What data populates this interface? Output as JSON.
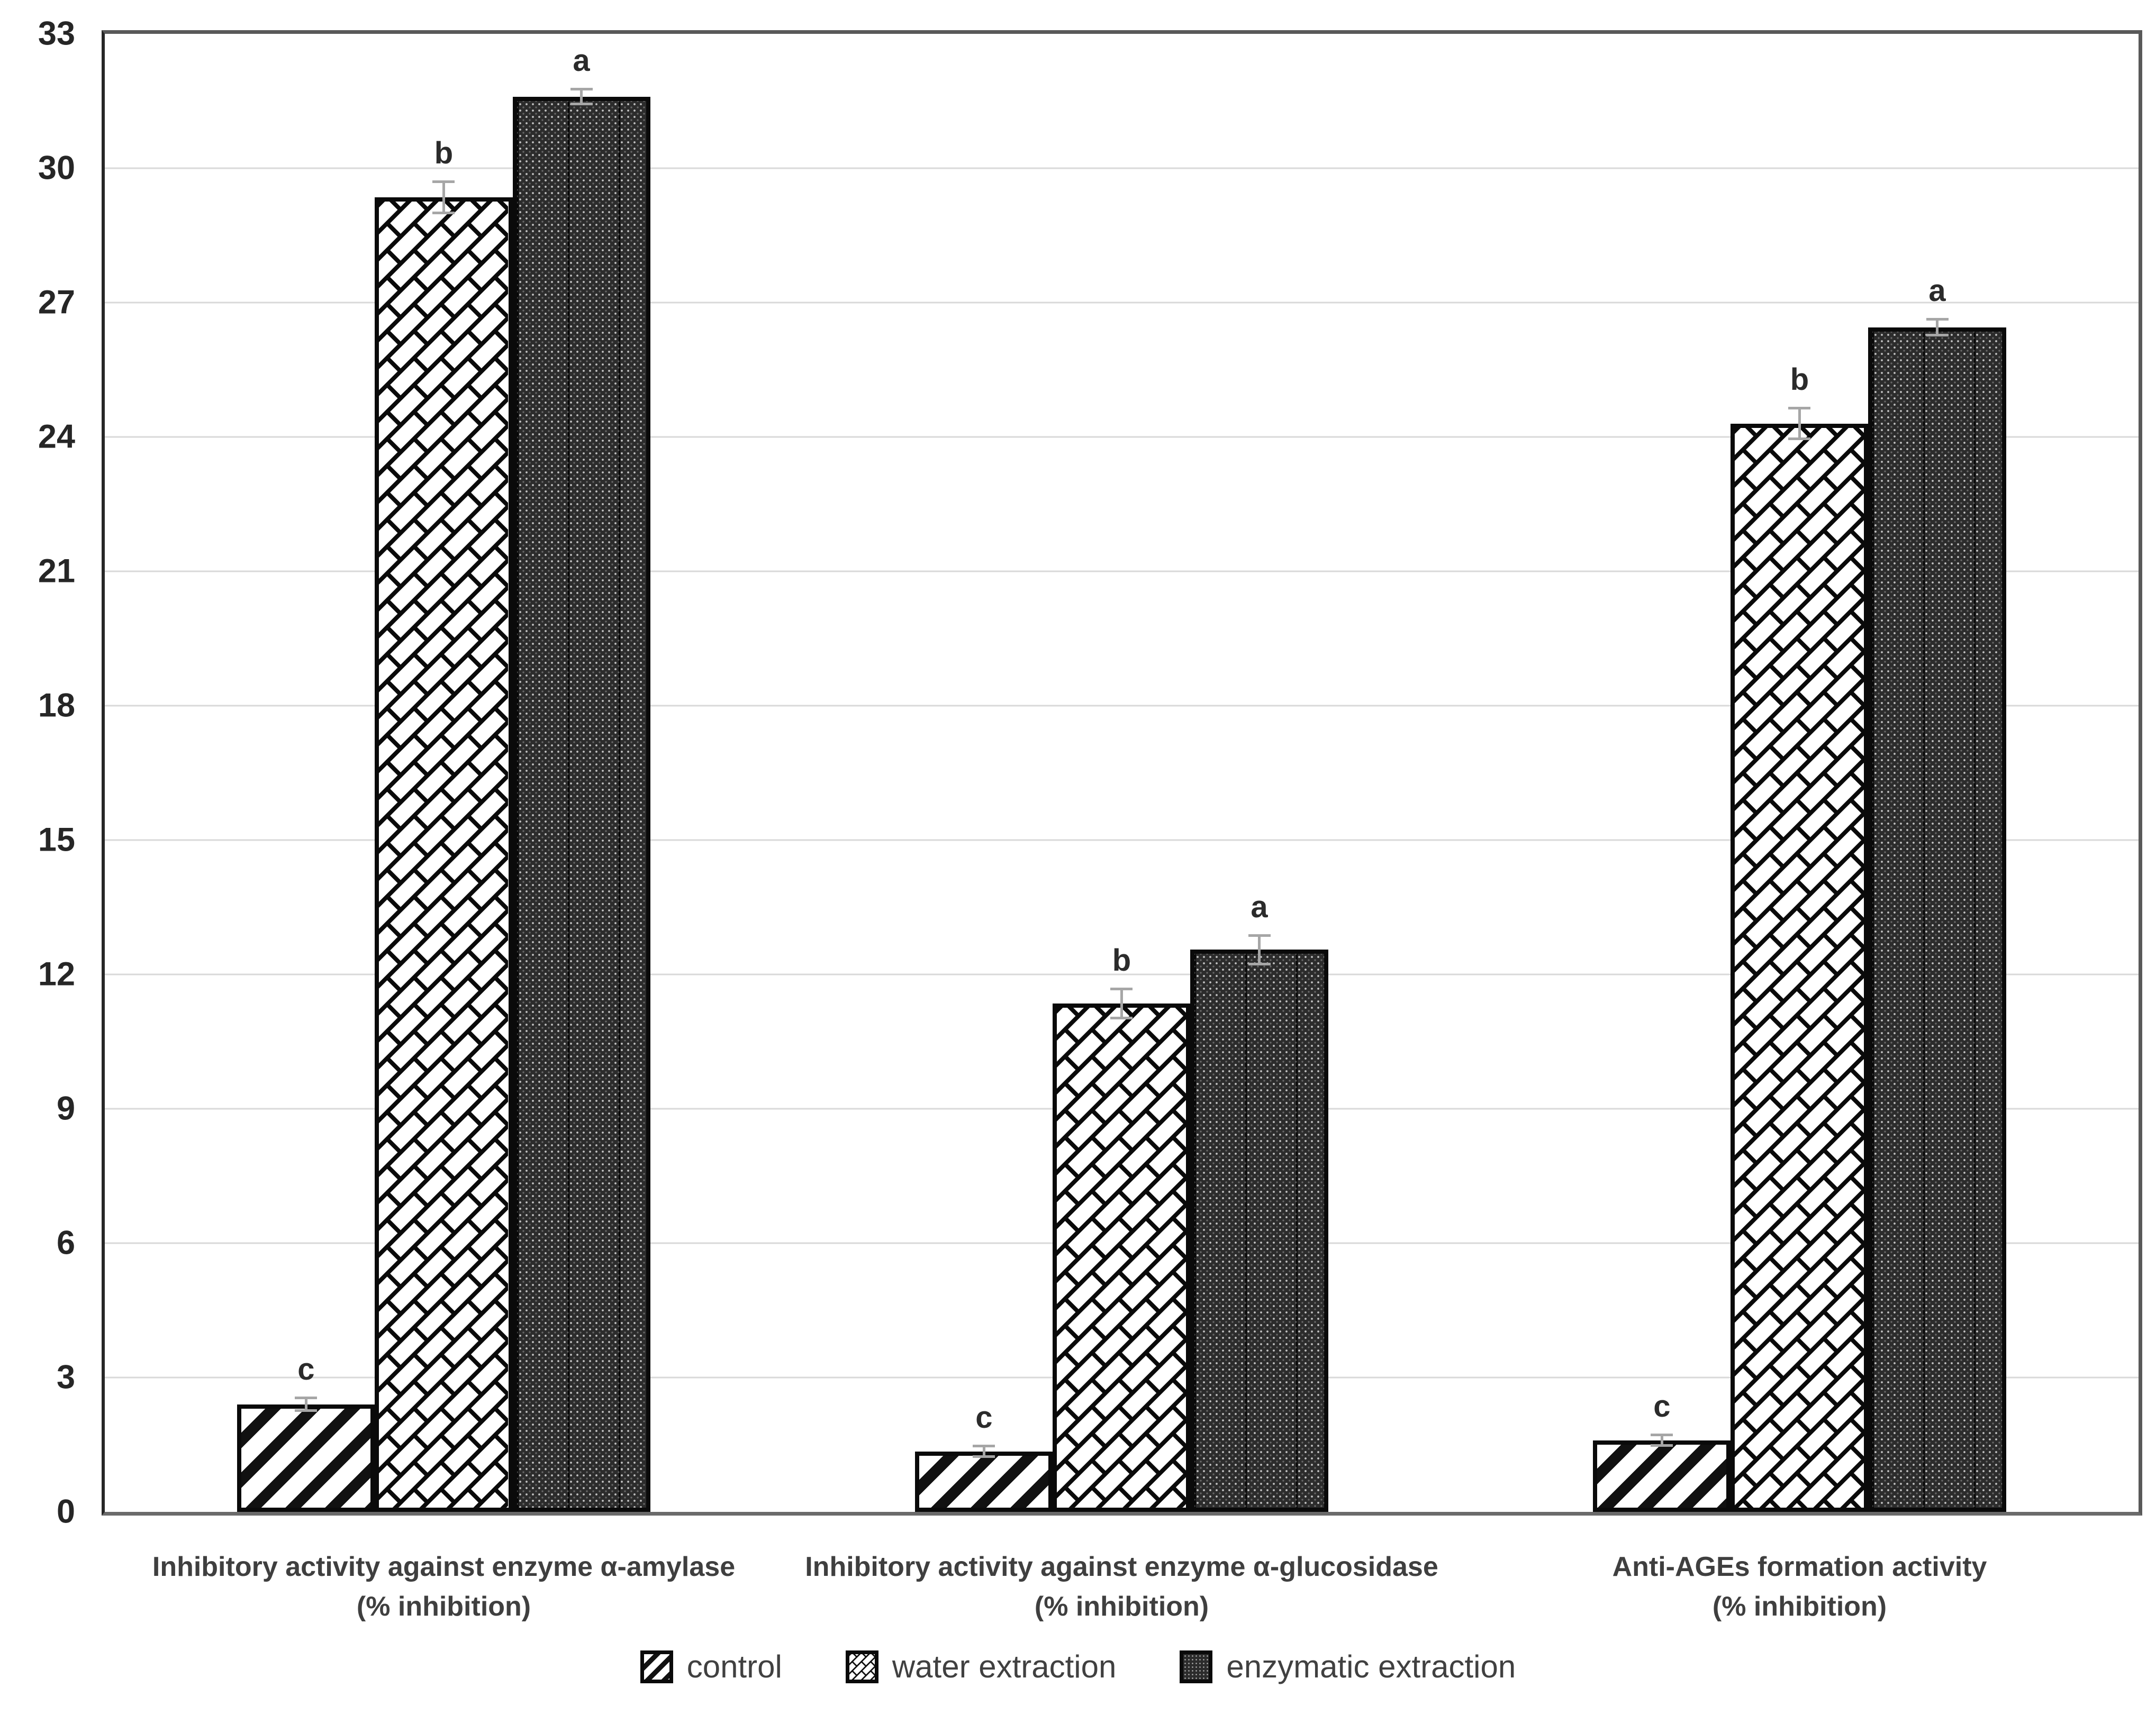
{
  "chart_data": {
    "type": "bar",
    "title": "",
    "xlabel": "",
    "ylabel": "",
    "ylim": [
      0,
      33
    ],
    "yticks": [
      0,
      3,
      6,
      9,
      12,
      15,
      18,
      21,
      24,
      27,
      30,
      33
    ],
    "grid": "horizontal",
    "legend_position": "bottom",
    "categories": [
      {
        "line1": "Inhibitory activity against enzyme α-amylase",
        "line2": "(% inhibition)"
      },
      {
        "line1": "Inhibitory activity against enzyme α-glucosidase",
        "line2": "(% inhibition)"
      },
      {
        "line1": "Anti-AGEs formation activity",
        "line2": "(% inhibition)"
      }
    ],
    "series": [
      {
        "name": "control",
        "pattern": "diagonal-stripes",
        "values": [
          2.4,
          1.35,
          1.6
        ],
        "errors": [
          0.17,
          0.15,
          0.15
        ],
        "letters": [
          "c",
          "c",
          "c"
        ]
      },
      {
        "name": "water extraction",
        "pattern": "diagonal-brick",
        "values": [
          29.35,
          11.35,
          24.3
        ],
        "errors": [
          0.38,
          0.35,
          0.37
        ],
        "letters": [
          "b",
          "b",
          "b"
        ]
      },
      {
        "name": "enzymatic extraction",
        "pattern": "dark-dotted",
        "values": [
          31.6,
          12.55,
          26.45
        ],
        "errors": [
          0.2,
          0.35,
          0.21
        ],
        "letters": [
          "a",
          "a",
          "a"
        ]
      }
    ]
  },
  "colors": {
    "pattern_black": "#0a0a0a",
    "dark_fill": "#2c2c2c",
    "grid": "#d9d9d9",
    "axis_border": "#595959",
    "axis_left": "#262626",
    "error_bar": "#a6a6a6",
    "tick_text": "#262626",
    "label_text": "#3f3f3f",
    "legend_text": "#404040",
    "background": "#ffffff"
  }
}
